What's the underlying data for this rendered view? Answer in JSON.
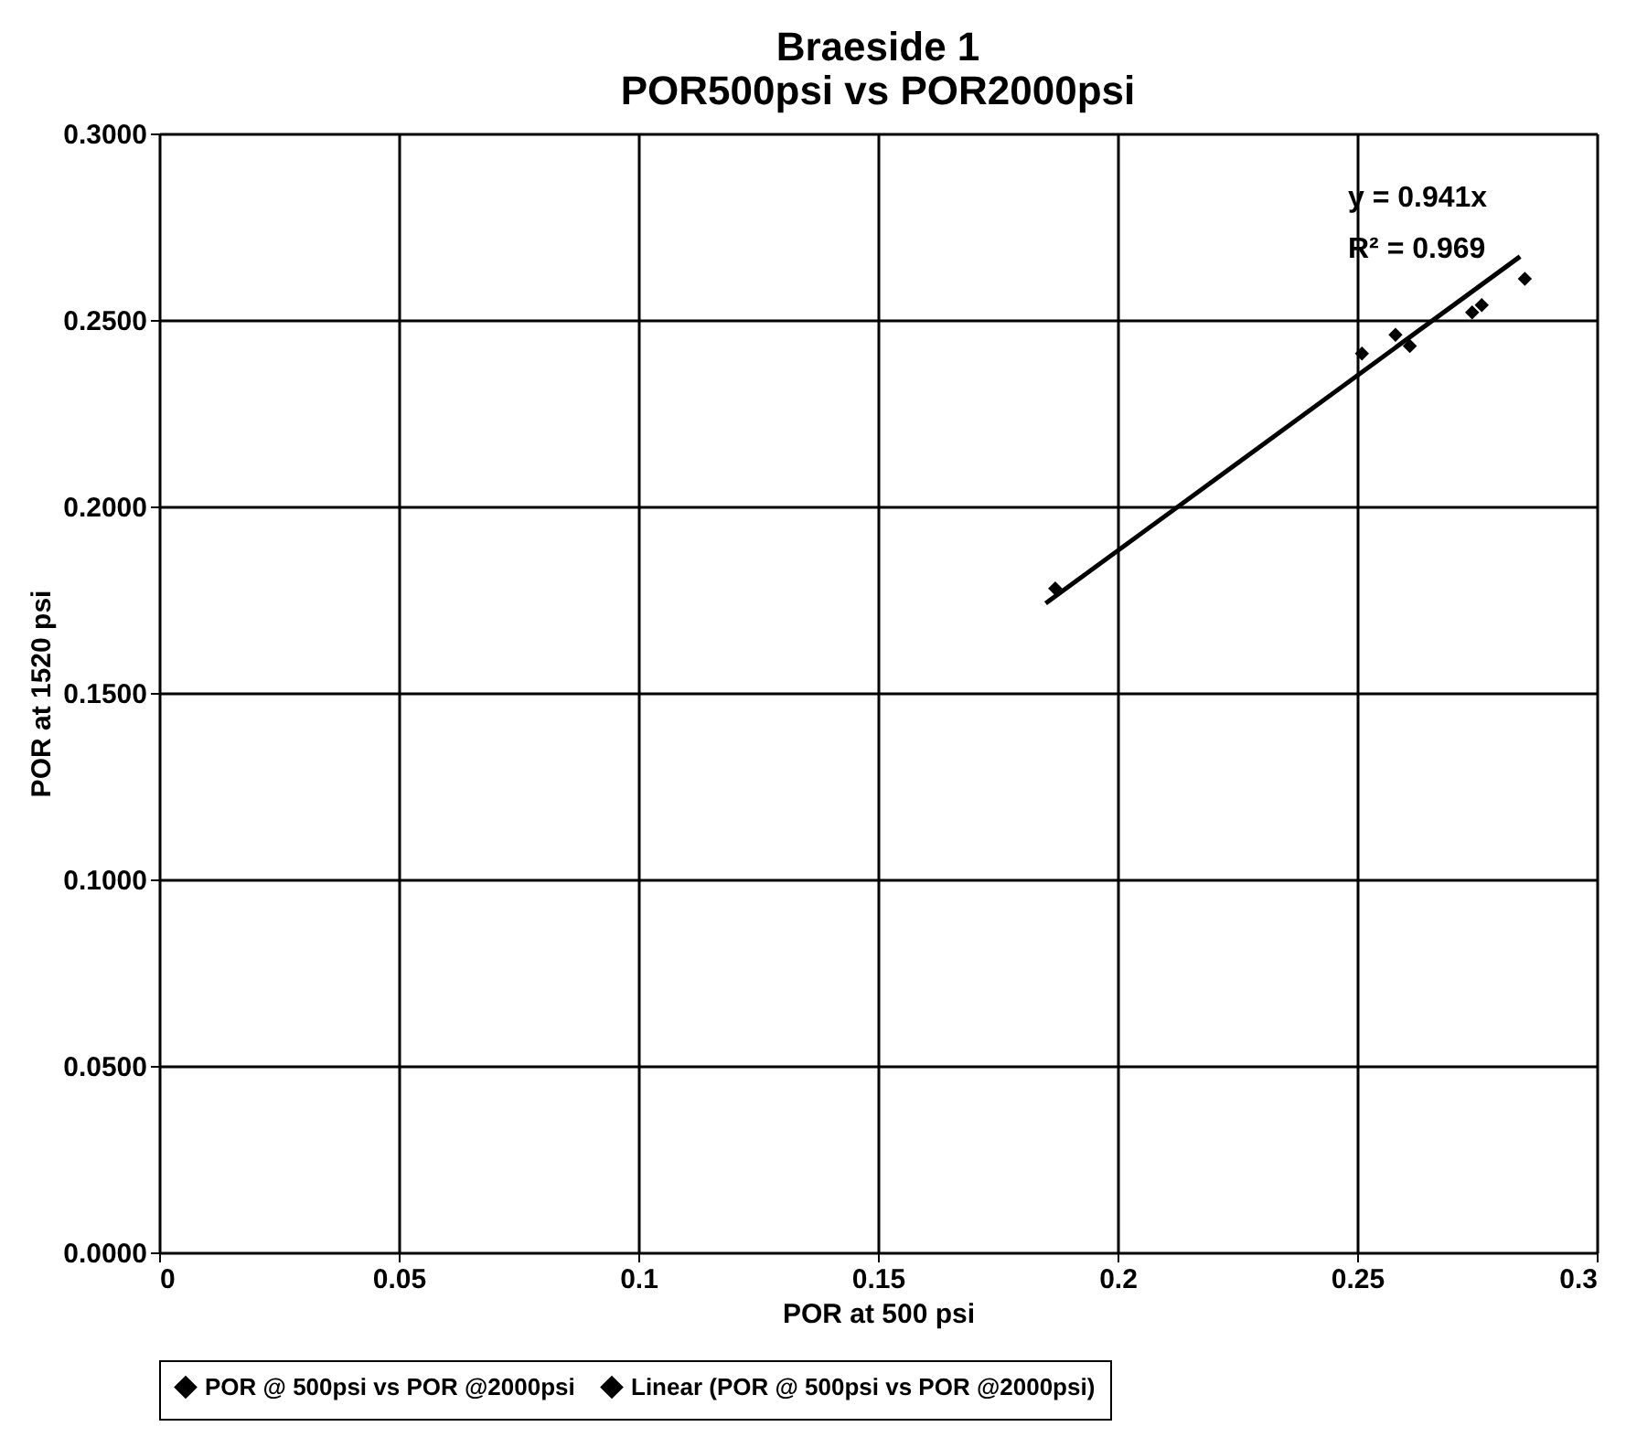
{
  "chart_data": {
    "type": "scatter",
    "title": [
      "Braeside 1",
      "POR500psi vs POR2000psi"
    ],
    "xlabel": "POR at 500 psi",
    "ylabel": "POR at 1520 psi",
    "xlim": [
      0,
      0.3
    ],
    "xticks": [
      0,
      0.05,
      0.1,
      0.15,
      0.2,
      0.25,
      0.3
    ],
    "ylim": [
      0,
      0.3
    ],
    "yticks": [
      {
        "value": 0,
        "label": "0.0000"
      },
      {
        "value": 0.05,
        "label": "0.0500"
      },
      {
        "value": 0.1,
        "label": "0.1000"
      },
      {
        "value": 0.15,
        "label": "0.1500"
      },
      {
        "value": 0.2,
        "label": "0.2000"
      },
      {
        "value": 0.25,
        "label": "0.2500"
      },
      {
        "value": 0.3,
        "label": "0.3000"
      }
    ],
    "grid": true,
    "legend": "bottom",
    "series": [
      {
        "name": "POR @ 500psi vs POR @2000psi",
        "marker": "diamond",
        "color": "#000000",
        "x": [
          0.187,
          0.251,
          0.258,
          0.261,
          0.274,
          0.276,
          0.285
        ],
        "values": [
          0.178,
          0.241,
          0.246,
          0.243,
          0.252,
          0.254,
          0.261
        ]
      },
      {
        "name": "Linear (POR @ 500psi vs POR @2000psi)",
        "type": "line",
        "color": "#000000",
        "line_style": "solid",
        "x": [
          0.185,
          0.284
        ],
        "values": [
          0.174,
          0.267
        ]
      }
    ],
    "annotations": [
      "y = 0.941x",
      "R² = 0.969"
    ]
  }
}
